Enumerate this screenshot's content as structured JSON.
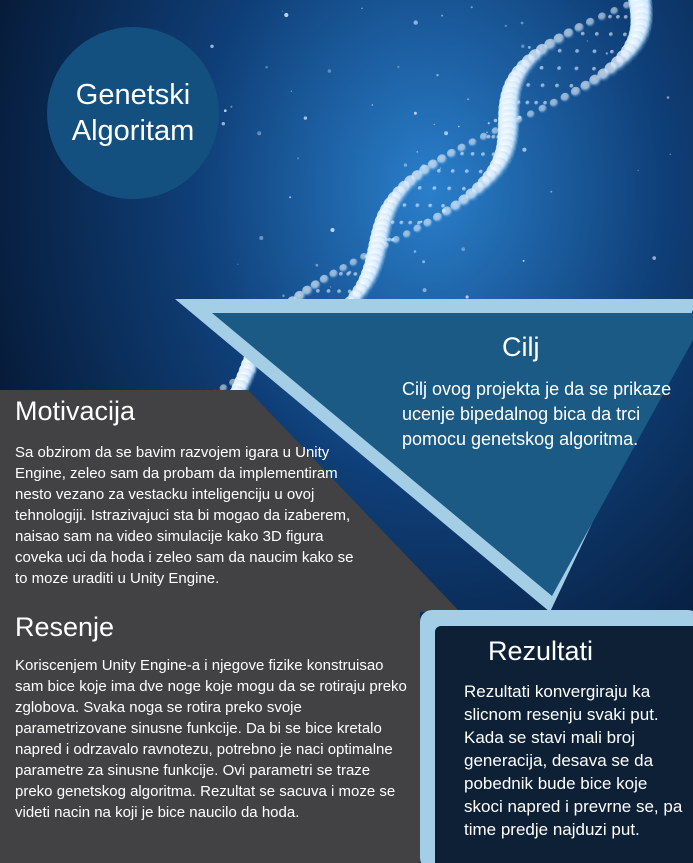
{
  "title": {
    "line1": "Genetski",
    "line2": "Algoritam"
  },
  "cilj": {
    "heading": "Cilj",
    "text": "Cilj ovog projekta je da se prikaze ucenje bipedalnog bica da trci pomocu genetskog algoritma."
  },
  "motivacija": {
    "heading": "Motivacija",
    "text": "Sa obzirom da se bavim razvojem igara u Unity Engine, zeleo sam da probam da implementiram nesto vezano za vestacku inteligenciju u ovoj tehnologiji. Istrazivajuci sta bi mogao da izaberem, naisao sam na video simulacije kako 3D figura coveka uci da hoda i zeleo sam da naucim kako se to moze uraditi u Unity Engine."
  },
  "resenje": {
    "heading": "Resenje",
    "text": "Koriscenjem Unity Engine-a i njegove fizike konstruisao sam bice koje ima dve noge koje mogu da se rotiraju preko zglobova. Svaka noga se rotira preko svoje parametrizovane sinusne funkcije. Da bi se bice kretalo napred i odrzavalo ravnotezu, potrebno je naci optimalne parametre za sinusne funkcije. Ovi parametri se traze preko genetskog algoritma. Rezultat se sacuva i moze se videti nacin na koji je bice naucilo da hoda."
  },
  "rezultati": {
    "heading": "Rezultati",
    "text": "Rezultati konvergiraju ka slicnom resenju svaki put. Kada se stavi mali broj generacija, desava se da pobednik bude bice koje skoci napred i prevrne se, pa time predje najduzi put."
  },
  "colors": {
    "background_dark": "#061530",
    "background_glow": "#1f6bb8",
    "title_circle": "#13507f",
    "cilj_panel": "#1b5a84",
    "panel_border": "#a4cde6",
    "motivacija_panel": "#424244",
    "rezultati_panel": "#0d2036"
  },
  "background_image": "dna-helix"
}
